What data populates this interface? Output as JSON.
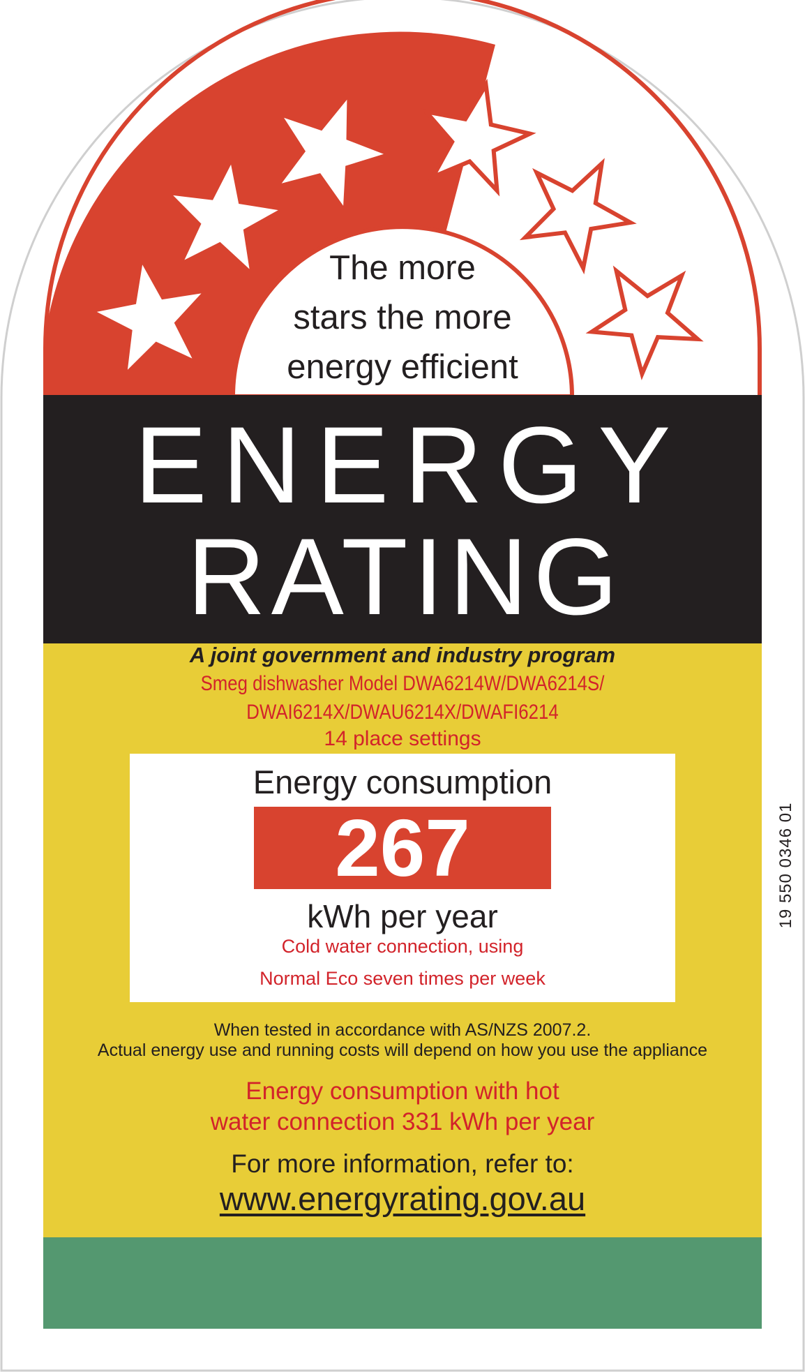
{
  "stars": {
    "total": 6,
    "rating": 3.5,
    "tagline": [
      "The more",
      "stars the more",
      "energy efficient"
    ]
  },
  "title": {
    "line1": "ENERGY",
    "line2": "RATING"
  },
  "program": {
    "text": "A joint government and industry program"
  },
  "product": {
    "model_line1": "Smeg dishwasher Model DWA6214W/DWA6214S/",
    "model_line2": "DWAI6214X/DWAU6214X/DWAFI6214",
    "capacity": "14 place settings"
  },
  "consumption": {
    "heading": "Energy consumption",
    "value": "267",
    "unit": "kWh per year",
    "note_line1": "Cold water connection, using",
    "note_line2": "Normal Eco seven times per week"
  },
  "standard": {
    "line1": "When tested in accordance with AS/NZS 2007.2.",
    "line2": "Actual energy use and running costs will depend on how you use the appliance"
  },
  "hot_water": {
    "line1": "Energy consumption with hot",
    "line2": "water connection 331 kWh per year"
  },
  "info": {
    "text": "For more information, refer to:",
    "url": "www.energyrating.gov.au"
  },
  "serial": "19 550 0346 01",
  "colors": {
    "red": "#d8432f",
    "text_red": "#d2232a",
    "black": "#231f20",
    "yellow": "#e8cd37",
    "green": "#549870",
    "white": "#ffffff"
  }
}
